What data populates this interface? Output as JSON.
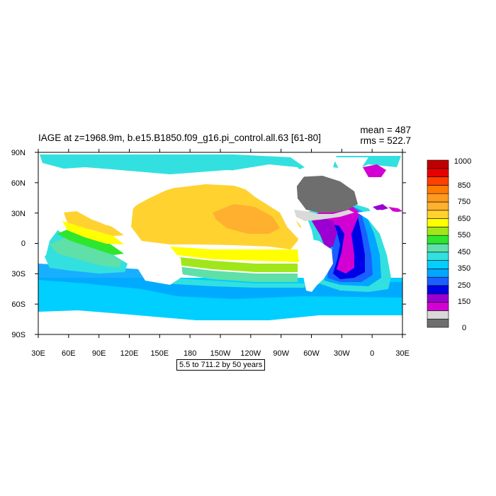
{
  "title": "IAGE at z=1968.9m, b.e15.B1850.f09_g16.pi_control.all.63 [61-80]",
  "stats": {
    "mean": "mean = 487",
    "rms": "rms = 522.7"
  },
  "range_label": "5.5 to 711.2 by 50 years",
  "map": {
    "lon_ticks": [
      "30E",
      "60E",
      "90E",
      "120E",
      "150E",
      "180",
      "150W",
      "120W",
      "90W",
      "60W",
      "30W",
      "0",
      "30E"
    ],
    "lat_ticks": [
      "90N",
      "60N",
      "30N",
      "0",
      "30S",
      "60S",
      "90S"
    ]
  },
  "colorbar": {
    "labels": [
      "1000",
      "850",
      "750",
      "650",
      "550",
      "450",
      "350",
      "250",
      "150",
      "0"
    ],
    "colors": [
      "#6e6e6e",
      "#d9d9d9",
      "#d200d2",
      "#9a00d2",
      "#0000e6",
      "#1a5fff",
      "#00a6ff",
      "#00cfff",
      "#33e0e0",
      "#5fe0a8",
      "#2ee62e",
      "#a0e61a",
      "#ffff00",
      "#ffd230",
      "#ffb02e",
      "#ff9a1f",
      "#ff7a00",
      "#ff4000",
      "#e60000",
      "#c00000"
    ]
  },
  "colors": {
    "pacific_north": "#ffd230",
    "pacific_core": "#ffb02e",
    "arctic": "#33e0e0",
    "southern": "#00cfff",
    "atlantic_core": "#d200d2"
  }
}
